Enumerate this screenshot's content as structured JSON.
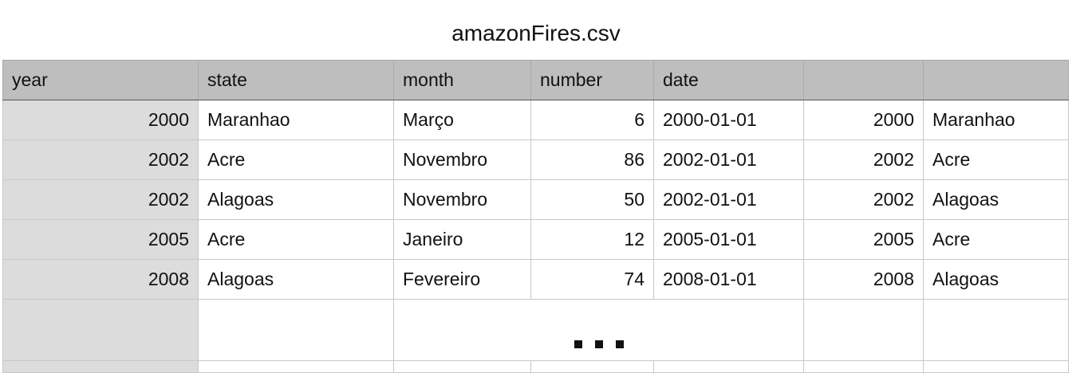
{
  "title": "amazonFires.csv",
  "columns": [
    "year",
    "state",
    "month",
    "number",
    "date",
    "",
    ""
  ],
  "rows": [
    [
      "2000",
      "Maranhao",
      "Março",
      "6",
      "2000-01-01",
      "2000",
      "Maranhao"
    ],
    [
      "2002",
      "Acre",
      "Novembro",
      "86",
      "2002-01-01",
      "2002",
      "Acre"
    ],
    [
      "2002",
      "Alagoas",
      "Novembro",
      "50",
      "2002-01-01",
      "2002",
      "Alagoas"
    ],
    [
      "2005",
      "Acre",
      "Janeiro",
      "12",
      "2005-01-01",
      "2005",
      "Acre"
    ],
    [
      "2008",
      "Alagoas",
      "Fevereiro",
      "74",
      "2008-01-01",
      "2008",
      "Alagoas"
    ]
  ],
  "ellipsis_icon": "ellipsis-icon",
  "colors": {
    "header_bg": "#bdbebd",
    "row_header_bg": "#dcdcdc",
    "grid_line": "#c8c8c8"
  }
}
